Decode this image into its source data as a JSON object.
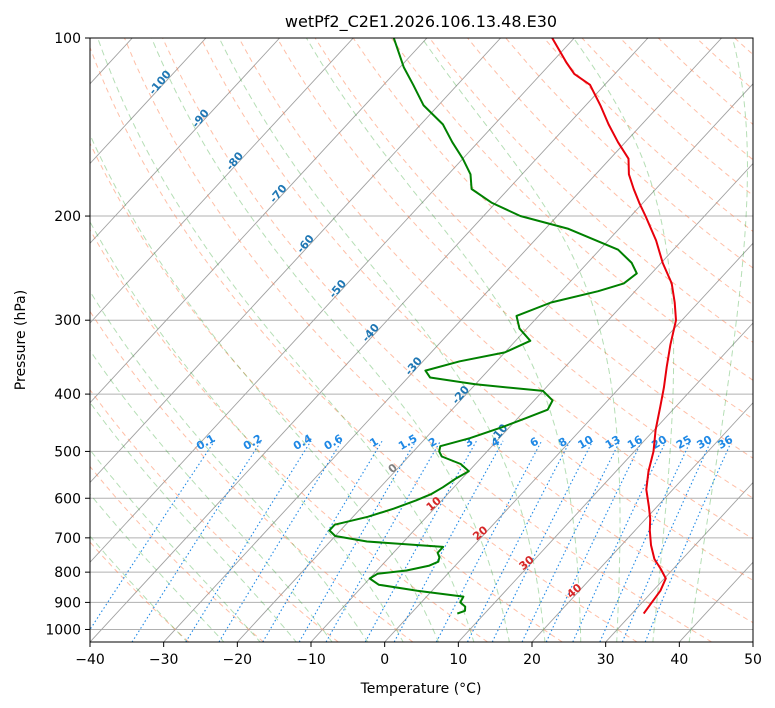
{
  "chart_data": {
    "type": "line",
    "title": "wetPf2_C2E1.2026.106.13.48.E30",
    "xlabel": "Temperature (°C)",
    "ylabel": "Pressure (hPa)",
    "xlim": [
      -40,
      50
    ],
    "ylim": [
      1050,
      100
    ],
    "y_scale": "log",
    "grid": true,
    "x_ticks": [
      "−40",
      "−30",
      "−20",
      "−10",
      "0",
      "10",
      "20",
      "30",
      "40",
      "50"
    ],
    "x_tick_values": [
      -40,
      -30,
      -20,
      -10,
      0,
      10,
      20,
      30,
      40,
      50
    ],
    "y_ticks": [
      "100",
      "200",
      "300",
      "400",
      "500",
      "600",
      "700",
      "800",
      "900",
      "1000"
    ],
    "y_tick_values": [
      100,
      200,
      300,
      400,
      500,
      600,
      700,
      800,
      900,
      1000
    ],
    "skew": 30,
    "series": [
      {
        "key": "temperature",
        "color": "#e8000b",
        "points": [
          [
            940,
            31.6
          ],
          [
            900,
            31.3
          ],
          [
            860,
            31.0
          ],
          [
            820,
            30.2
          ],
          [
            790,
            28.3
          ],
          [
            760,
            26.2
          ],
          [
            720,
            24.0
          ],
          [
            680,
            22.0
          ],
          [
            650,
            20.6
          ],
          [
            620,
            18.9
          ],
          [
            580,
            16.4
          ],
          [
            540,
            14.4
          ],
          [
            500,
            12.6
          ],
          [
            460,
            10.2
          ],
          [
            420,
            7.9
          ],
          [
            390,
            6.0
          ],
          [
            360,
            3.8
          ],
          [
            330,
            1.5
          ],
          [
            300,
            -0.8
          ],
          [
            280,
            -3.2
          ],
          [
            260,
            -6.0
          ],
          [
            240,
            -9.8
          ],
          [
            220,
            -13.5
          ],
          [
            200,
            -18.0
          ],
          [
            190,
            -20.5
          ],
          [
            180,
            -23.0
          ],
          [
            170,
            -25.5
          ],
          [
            160,
            -27.5
          ],
          [
            150,
            -31.0
          ],
          [
            140,
            -34.5
          ],
          [
            130,
            -38.0
          ],
          [
            120,
            -42.0
          ],
          [
            115,
            -45.5
          ],
          [
            110,
            -48.0
          ],
          [
            100,
            -53.0
          ]
        ]
      },
      {
        "key": "dewpoint",
        "color": "#008000",
        "points": [
          [
            940,
            6.3
          ],
          [
            930,
            7.0
          ],
          [
            915,
            6.5
          ],
          [
            900,
            5.3
          ],
          [
            880,
            5.0
          ],
          [
            860,
            -2.0
          ],
          [
            840,
            -8.0
          ],
          [
            820,
            -10.0
          ],
          [
            805,
            -9.5
          ],
          [
            795,
            -6.0
          ],
          [
            780,
            -3.5
          ],
          [
            768,
            -2.8
          ],
          [
            755,
            -3.2
          ],
          [
            742,
            -4.0
          ],
          [
            725,
            -4.0
          ],
          [
            710,
            -15.0
          ],
          [
            695,
            -20.0
          ],
          [
            680,
            -21.5
          ],
          [
            665,
            -21.5
          ],
          [
            645,
            -18.0
          ],
          [
            625,
            -15.5
          ],
          [
            605,
            -13.5
          ],
          [
            590,
            -12.2
          ],
          [
            575,
            -11.5
          ],
          [
            555,
            -10.8
          ],
          [
            540,
            -10.0
          ],
          [
            525,
            -12.0
          ],
          [
            510,
            -15.5
          ],
          [
            500,
            -16.5
          ],
          [
            490,
            -17.0
          ],
          [
            475,
            -14.0
          ],
          [
            455,
            -11.0
          ],
          [
            440,
            -9.0
          ],
          [
            425,
            -7.0
          ],
          [
            410,
            -7.5
          ],
          [
            395,
            -10.0
          ],
          [
            385,
            -20.0
          ],
          [
            375,
            -27.0
          ],
          [
            365,
            -28.5
          ],
          [
            352,
            -25.0
          ],
          [
            340,
            -20.0
          ],
          [
            325,
            -18.0
          ],
          [
            310,
            -21.0
          ],
          [
            295,
            -23.0
          ],
          [
            280,
            -20.0
          ],
          [
            268,
            -15.0
          ],
          [
            260,
            -12.5
          ],
          [
            250,
            -12.0
          ],
          [
            240,
            -14.0
          ],
          [
            228,
            -17.5
          ],
          [
            210,
            -27.0
          ],
          [
            200,
            -35.0
          ],
          [
            190,
            -40.5
          ],
          [
            180,
            -45.0
          ],
          [
            170,
            -47.0
          ],
          [
            160,
            -50.0
          ],
          [
            150,
            -53.5
          ],
          [
            140,
            -57.0
          ],
          [
            130,
            -62.0
          ],
          [
            120,
            -66.0
          ],
          [
            112,
            -69.5
          ],
          [
            100,
            -74.5
          ]
        ]
      }
    ],
    "dry_adiabat_labels": [
      "-100",
      "-90",
      "-80",
      "-70",
      "-60",
      "-50",
      "-40",
      "-30",
      "-20",
      "-10"
    ],
    "moist_adiabat_labels": [
      "0",
      "10",
      "20",
      "30",
      "40"
    ],
    "mixing_ratio_labels": [
      "0.1",
      "0.2",
      "0.4",
      "0.6",
      "1",
      "1.5",
      "2",
      "3",
      "4",
      "6",
      "8",
      "10",
      "13",
      "16",
      "20",
      "25",
      "30",
      "36"
    ],
    "mixing_ratio_values": [
      0.1,
      0.2,
      0.4,
      0.6,
      1,
      1.5,
      2,
      3,
      4,
      6,
      8,
      10,
      13,
      16,
      20,
      25,
      30,
      36
    ],
    "colors": {
      "dry_adiabat": "#ff7f50",
      "dry_adiabat_label": "#1f77b4",
      "moist_adiabat": "#2ca02c",
      "moist_adiabat_label": "#d62728",
      "mixing_ratio": "#1e88e5",
      "isotherm": "#a0a0a0",
      "grid": "#b0b0b0",
      "dry_curve": "#d2b48c",
      "zero_label": "#7f7f7f"
    }
  }
}
